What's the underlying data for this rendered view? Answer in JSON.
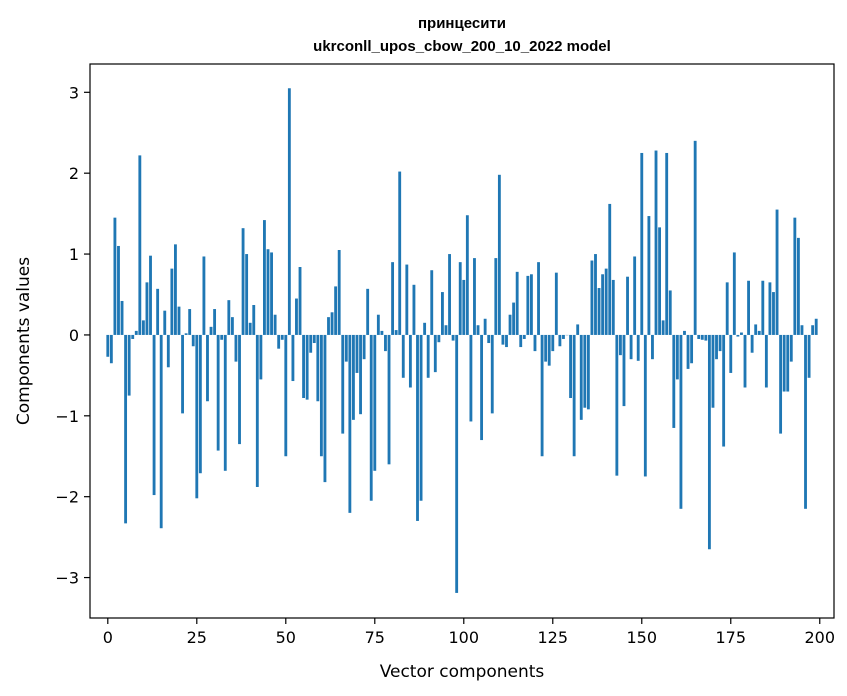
{
  "chart_data": {
    "type": "bar",
    "title_line1": "принцесити",
    "title_line2": "ukrconll_upos_cbow_200_10_2022 model",
    "xlabel": "Vector components",
    "ylabel": "Components values",
    "xlim": [
      -5,
      204
    ],
    "ylim": [
      -3.5,
      3.35
    ],
    "xticks": [
      0,
      25,
      50,
      75,
      100,
      125,
      150,
      175,
      200
    ],
    "xtick_labels": [
      "0",
      "25",
      "50",
      "75",
      "100",
      "125",
      "150",
      "175",
      "200"
    ],
    "yticks": [
      -3,
      -2,
      -1,
      0,
      1,
      2,
      3
    ],
    "ytick_labels": [
      "−3",
      "−2",
      "−1",
      "0",
      "1",
      "2",
      "3"
    ],
    "bar_color": "#1f77b4",
    "values": [
      -0.27,
      -0.35,
      1.45,
      1.1,
      0.42,
      -2.33,
      -0.75,
      -0.05,
      0.05,
      2.22,
      0.18,
      0.65,
      0.98,
      -1.98,
      0.57,
      -2.39,
      0.3,
      -0.4,
      0.82,
      1.12,
      0.35,
      -0.97,
      0.02,
      0.32,
      -0.14,
      -2.02,
      -1.71,
      0.97,
      -0.82,
      0.1,
      0.32,
      -1.43,
      -0.06,
      -1.68,
      0.43,
      0.22,
      -0.33,
      -1.35,
      1.32,
      1.0,
      0.15,
      0.37,
      -1.88,
      -0.55,
      1.42,
      1.06,
      1.02,
      0.25,
      -0.17,
      -0.06,
      -1.5,
      3.05,
      -0.57,
      0.45,
      0.84,
      -0.78,
      -0.8,
      -0.22,
      -0.1,
      -0.82,
      -1.5,
      -1.82,
      0.22,
      0.28,
      0.6,
      1.05,
      -1.22,
      -0.33,
      -2.2,
      -1.05,
      -0.47,
      -0.98,
      -0.3,
      0.57,
      -2.05,
      -1.68,
      0.25,
      0.05,
      -0.2,
      -1.6,
      0.9,
      0.06,
      2.02,
      -0.53,
      0.87,
      -0.65,
      0.62,
      -2.3,
      -2.05,
      0.15,
      -0.53,
      0.8,
      -0.46,
      -0.09,
      0.53,
      0.12,
      1.0,
      -0.07,
      -3.19,
      0.9,
      0.68,
      1.48,
      -1.07,
      0.95,
      0.12,
      -1.3,
      0.2,
      -0.1,
      -0.97,
      0.95,
      1.98,
      -0.12,
      -0.15,
      0.25,
      0.4,
      0.78,
      -0.15,
      -0.05,
      0.73,
      0.75,
      -0.2,
      0.9,
      -1.5,
      -0.33,
      -0.38,
      -0.2,
      0.77,
      -0.14,
      -0.05,
      0.0,
      -0.78,
      -1.5,
      0.13,
      -1.05,
      -0.9,
      -0.92,
      0.92,
      1.0,
      0.58,
      0.75,
      0.82,
      1.62,
      0.68,
      -1.74,
      -0.25,
      -0.88,
      0.72,
      -0.3,
      0.97,
      -0.32,
      2.25,
      -1.75,
      1.47,
      -0.3,
      2.28,
      1.33,
      0.18,
      2.25,
      0.55,
      -1.15,
      -0.55,
      -2.15,
      0.05,
      -0.42,
      -0.35,
      2.4,
      -0.05,
      -0.06,
      -0.07,
      -2.65,
      -0.9,
      -0.3,
      -0.2,
      -1.38,
      0.65,
      -0.47,
      1.02,
      -0.02,
      0.03,
      -0.65,
      0.67,
      -0.22,
      0.13,
      0.05,
      0.67,
      -0.65,
      0.65,
      0.53,
      1.55,
      -1.22,
      -0.7,
      -0.7,
      -0.33,
      1.45,
      1.2,
      0.12,
      -2.15,
      -0.53,
      0.12,
      0.2
    ]
  }
}
